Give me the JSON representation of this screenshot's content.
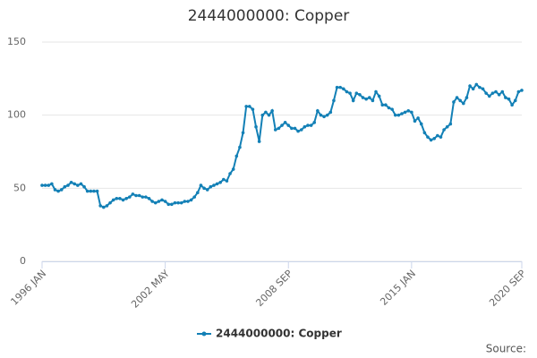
{
  "chart_data": {
    "type": "line",
    "title": "2444000000: Copper",
    "source": "Source:",
    "categories": [
      "1996 JAN",
      null,
      null,
      null,
      null,
      null,
      null,
      null,
      null,
      null,
      null,
      null,
      null,
      null,
      null,
      null,
      null,
      null,
      null,
      null,
      null,
      null,
      null,
      null,
      null,
      null,
      null,
      null,
      null,
      null,
      null,
      null,
      null,
      null,
      null,
      null,
      null,
      null,
      "2002 MAY",
      null,
      null,
      null,
      null,
      null,
      null,
      null,
      null,
      null,
      null,
      null,
      null,
      null,
      null,
      null,
      null,
      null,
      null,
      null,
      null,
      null,
      null,
      null,
      null,
      null,
      null,
      null,
      null,
      null,
      null,
      null,
      null,
      null,
      null,
      null,
      null,
      null,
      "2008 SEP",
      null,
      null,
      null,
      null,
      null,
      null,
      null,
      null,
      null,
      null,
      null,
      null,
      null,
      null,
      null,
      null,
      null,
      null,
      null,
      null,
      null,
      null,
      null,
      null,
      null,
      null,
      null,
      null,
      null,
      null,
      null,
      null,
      null,
      null,
      null,
      null,
      null,
      "2015 JAN",
      null,
      null,
      null,
      null,
      null,
      null,
      null,
      null,
      null,
      null,
      null,
      null,
      null,
      null,
      null,
      null,
      null,
      null,
      null,
      null,
      null,
      null,
      null,
      null,
      null,
      null,
      null,
      null,
      null,
      null,
      null,
      null,
      null,
      "2020 SEP"
    ],
    "series": [
      {
        "name": "2444000000: Copper",
        "color": "#1380b6",
        "values": [
          52,
          52,
          52,
          53,
          49,
          48,
          49,
          51,
          52,
          54,
          53,
          52,
          53,
          51,
          48,
          48,
          48,
          48,
          38,
          37,
          38,
          40,
          42,
          43,
          43,
          42,
          43,
          44,
          46,
          45,
          45,
          44,
          44,
          43,
          41,
          40,
          41,
          42,
          41,
          39,
          39,
          40,
          40,
          40,
          41,
          41,
          42,
          44,
          47,
          52,
          50,
          49,
          51,
          52,
          53,
          54,
          56,
          55,
          60,
          63,
          72,
          78,
          88,
          106,
          106,
          104,
          92,
          82,
          100,
          102,
          100,
          103,
          90,
          91,
          93,
          95,
          93,
          91,
          91,
          89,
          90,
          92,
          93,
          93,
          95,
          103,
          100,
          99,
          100,
          102,
          110,
          119,
          119,
          118,
          116,
          115,
          110,
          115,
          114,
          112,
          111,
          112,
          110,
          116,
          113,
          107,
          107,
          105,
          104,
          100,
          100,
          101,
          102,
          103,
          102,
          96,
          98,
          94,
          88,
          85,
          83,
          84,
          86,
          85,
          90,
          92,
          94,
          109,
          112,
          110,
          108,
          112,
          120,
          118,
          121,
          119,
          118,
          115,
          113,
          115,
          116,
          114,
          116,
          112,
          111,
          107,
          110,
          116,
          117
        ]
      }
    ],
    "ylim": [
      0,
      150
    ],
    "yticks": [
      0,
      50,
      100,
      150
    ],
    "grid": true
  }
}
